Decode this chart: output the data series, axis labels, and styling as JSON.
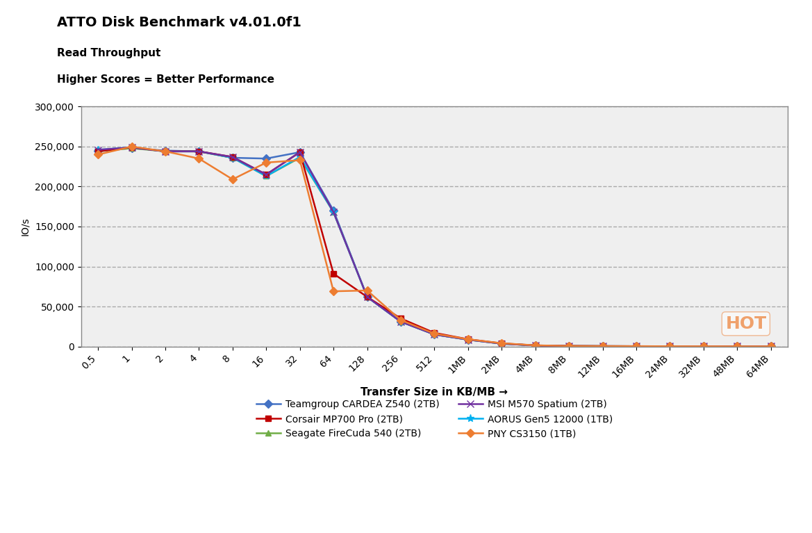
{
  "title_line1": "ATTO Disk Benchmark v4.01.0f1",
  "title_line2": "Read Throughput",
  "title_line3": "Higher Scores = Better Performance",
  "ylabel": "IO/s",
  "xlabel": "Transfer Size in KB/MB →",
  "x_labels": [
    "0.5",
    "1",
    "2",
    "4",
    "8",
    "16",
    "32",
    "64",
    "128",
    "256",
    "512",
    "1MB",
    "2MB",
    "4MB",
    "8MB",
    "12MB",
    "16MB",
    "24MB",
    "32MB",
    "48MB",
    "64MB"
  ],
  "ylim": [
    0,
    300000
  ],
  "yticks": [
    0,
    50000,
    100000,
    150000,
    200000,
    250000,
    300000
  ],
  "background_color": "#efefef",
  "series": [
    {
      "label": "Teamgroup CARDEA Z540 (2TB)",
      "color": "#4472c4",
      "marker": "D",
      "markersize": 6,
      "values": [
        245000,
        248000,
        245000,
        244000,
        236000,
        235000,
        243000,
        170000,
        62000,
        31000,
        15000,
        8500,
        3500,
        1200,
        500,
        350,
        250,
        200,
        150,
        100,
        80
      ]
    },
    {
      "label": "Seagate FireCuda 540 (2TB)",
      "color": "#70ad47",
      "marker": "^",
      "markersize": 6,
      "values": [
        244000,
        248000,
        244000,
        244000,
        236000,
        213000,
        236000,
        168000,
        62000,
        31000,
        15000,
        8500,
        3500,
        1200,
        500,
        350,
        250,
        200,
        150,
        100,
        80
      ]
    },
    {
      "label": "AORUS Gen5 12000 (1TB)",
      "color": "#00b0f0",
      "marker": "*",
      "markersize": 8,
      "values": [
        246000,
        249000,
        244000,
        244000,
        236000,
        213000,
        237000,
        168000,
        62000,
        31000,
        15000,
        8500,
        3500,
        1200,
        500,
        350,
        250,
        200,
        150,
        100,
        80
      ]
    },
    {
      "label": "Corsair MP700 Pro (2TB)",
      "color": "#c00000",
      "marker": "s",
      "markersize": 6,
      "values": [
        244000,
        249000,
        244000,
        244000,
        237000,
        215000,
        243000,
        91000,
        62000,
        35000,
        17000,
        9000,
        3800,
        1300,
        600,
        400,
        300,
        220,
        170,
        120,
        90
      ]
    },
    {
      "label": "MSI M570 Spatium (2TB)",
      "color": "#7030a0",
      "marker": "x",
      "markersize": 7,
      "values": [
        246000,
        249000,
        244000,
        244000,
        237000,
        215000,
        243000,
        168000,
        62000,
        31000,
        15000,
        8500,
        3500,
        1200,
        500,
        350,
        250,
        200,
        150,
        100,
        80
      ]
    },
    {
      "label": "PNY CS3150 (1TB)",
      "color": "#ed7d31",
      "marker": "D",
      "markersize": 6,
      "values": [
        240000,
        250000,
        244000,
        235000,
        209000,
        230000,
        233000,
        69000,
        70000,
        33000,
        16000,
        9000,
        4000,
        1400,
        600,
        400,
        300,
        220,
        180,
        130,
        100
      ]
    }
  ]
}
